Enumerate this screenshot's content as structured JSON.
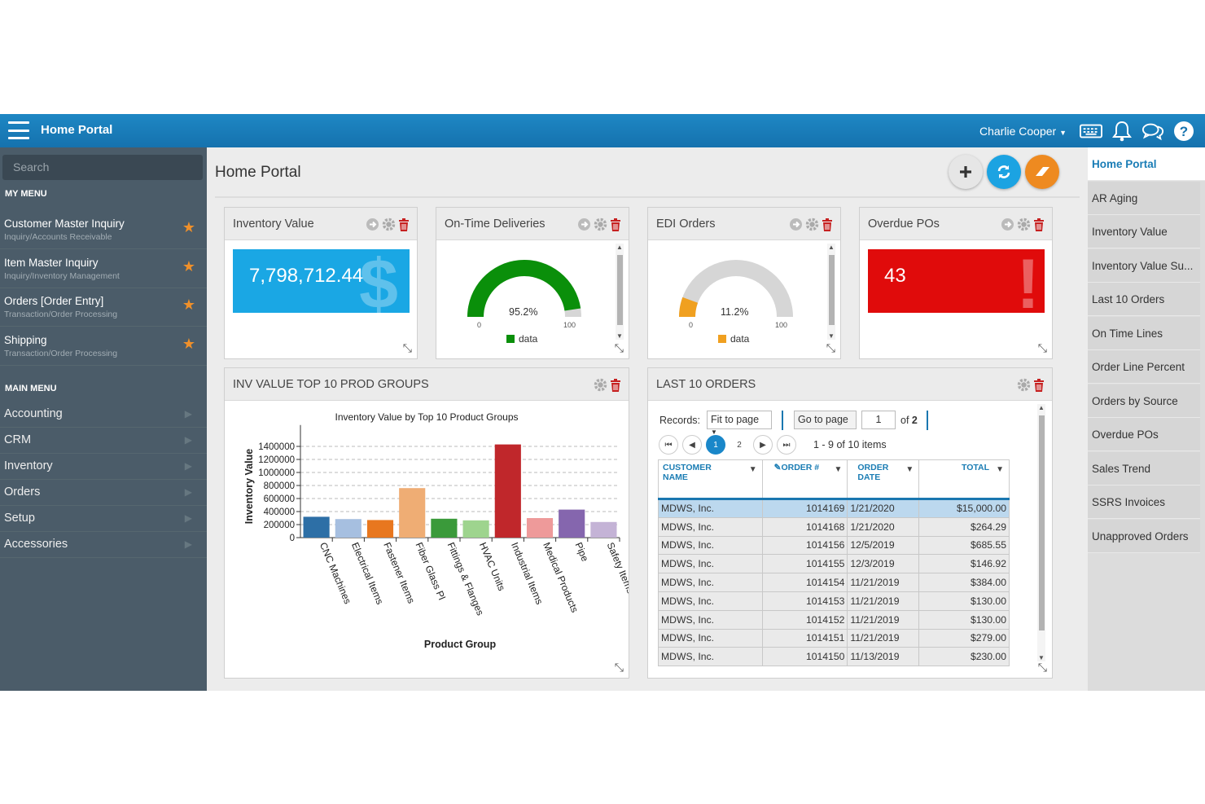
{
  "header": {
    "app_title": "Home Portal",
    "user_name": "Charlie Cooper"
  },
  "sidebar": {
    "search_placeholder": "Search",
    "my_menu_title": "MY MENU",
    "my_menu": [
      {
        "label": "Customer Master Inquiry",
        "path": "Inquiry/Accounts Receivable"
      },
      {
        "label": "Item Master Inquiry",
        "path": "Inquiry/Inventory Management"
      },
      {
        "label": "Orders [Order Entry]",
        "path": "Transaction/Order Processing"
      },
      {
        "label": "Shipping",
        "path": "Transaction/Order Processing"
      }
    ],
    "main_menu_title": "MAIN MENU",
    "main_menu": [
      "Accounting",
      "CRM",
      "Inventory",
      "Orders",
      "Setup",
      "Accessories"
    ]
  },
  "page": {
    "title": "Home Portal"
  },
  "widgets": {
    "inventory_value": {
      "title": "Inventory Value",
      "value": "7,798,712.44",
      "icon": "dollar-sign"
    },
    "on_time": {
      "title": "On-Time Deliveries",
      "value_label": "95.2%",
      "value": 95.2,
      "min": "0",
      "max": "100",
      "legend": "data",
      "color": "#0a8f0a"
    },
    "edi_orders": {
      "title": "EDI Orders",
      "value_label": "11.2%",
      "value": 11.2,
      "min": "0",
      "max": "100",
      "legend": "data",
      "color": "#f0a020"
    },
    "overdue_pos": {
      "title": "Overdue POs",
      "value": "43",
      "icon": "exclamation"
    }
  },
  "inv_chart_panel": {
    "title": "INV VALUE TOP 10 PROD GROUPS"
  },
  "chart_data": {
    "type": "bar",
    "title": "Inventory Value by Top 10 Product Groups",
    "xlabel": "Product Group",
    "ylabel": "Inventory Value",
    "ylim": [
      0,
      1600000
    ],
    "yticks": [
      "0",
      "200000",
      "400000",
      "600000",
      "800000",
      "1000000",
      "1200000",
      "1400000"
    ],
    "categories": [
      "CNC Machines",
      "Electrical Items",
      "Fastener Items",
      "Fiber Glass Pl",
      "Fittings & Flanges",
      "HVAC Units",
      "Industrial Items",
      "Medical Products",
      "Pipe",
      "Safety Items"
    ],
    "values": [
      320000,
      285000,
      270000,
      760000,
      290000,
      265000,
      1430000,
      300000,
      430000,
      240000
    ],
    "colors": [
      "#2d6fa6",
      "#a6bfe0",
      "#e8771f",
      "#efad74",
      "#3a9a3a",
      "#9ed48e",
      "#c0272b",
      "#ee9a9a",
      "#8566ae",
      "#c4b3d6"
    ],
    "grid": true
  },
  "orders_panel": {
    "title": "LAST 10 ORDERS",
    "records_label": "Records:",
    "records_value": "Fit to page",
    "goto_label": "Go to page",
    "goto_value": "1",
    "of_label": "of",
    "total_pages": "2",
    "pages": [
      "1",
      "2"
    ],
    "items_label": "1 - 9 of 10 items",
    "columns": [
      {
        "l1": "CUSTOMER",
        "l2": "NAME"
      },
      {
        "l1": "ORDER #",
        "l2": ""
      },
      {
        "l1": "ORDER",
        "l2": "DATE"
      },
      {
        "l1": "TOTAL",
        "l2": ""
      }
    ],
    "rows": [
      [
        "MDWS, Inc.",
        "1014169",
        "1/21/2020",
        "$15,000.00"
      ],
      [
        "MDWS, Inc.",
        "1014168",
        "1/21/2020",
        "$264.29"
      ],
      [
        "MDWS, Inc.",
        "1014156",
        "12/5/2019",
        "$685.55"
      ],
      [
        "MDWS, Inc.",
        "1014155",
        "12/3/2019",
        "$146.92"
      ],
      [
        "MDWS, Inc.",
        "1014154",
        "11/21/2019",
        "$384.00"
      ],
      [
        "MDWS, Inc.",
        "1014153",
        "11/21/2019",
        "$130.00"
      ],
      [
        "MDWS, Inc.",
        "1014152",
        "11/21/2019",
        "$130.00"
      ],
      [
        "MDWS, Inc.",
        "1014151",
        "11/21/2019",
        "$279.00"
      ],
      [
        "MDWS, Inc.",
        "1014150",
        "11/13/2019",
        "$230.00"
      ]
    ]
  },
  "right_nav": [
    "Home Portal",
    "AR Aging",
    "Inventory Value",
    "Inventory Value Su...",
    "Last 10 Orders",
    "On Time Lines",
    "Order Line Percent",
    "Orders by Source",
    "Overdue POs",
    "Sales Trend",
    "SSRS Invoices",
    "Unapproved Orders"
  ]
}
